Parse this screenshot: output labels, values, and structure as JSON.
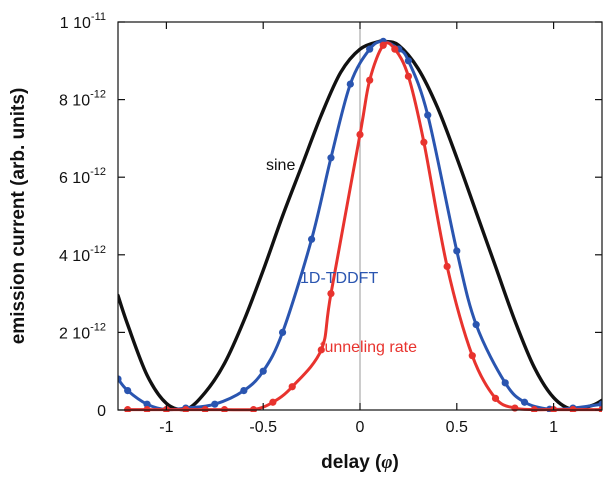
{
  "chart_data": {
    "type": "line",
    "xlabel": "delay (φ)",
    "xlabel_prefix": "delay (",
    "xlabel_symbol": "φ",
    "xlabel_suffix": ")",
    "ylabel": "emission current (arb. units)",
    "xlim": [
      -1.25,
      1.25
    ],
    "ylim": [
      0,
      1e-11
    ],
    "x_ticks": [
      {
        "value": -1,
        "label": "-1"
      },
      {
        "value": -0.5,
        "label": "-0.5"
      },
      {
        "value": 0,
        "label": "0"
      },
      {
        "value": 0.5,
        "label": "0.5"
      },
      {
        "value": 1,
        "label": "1"
      }
    ],
    "y_ticks": [
      {
        "value": 0,
        "base": "0",
        "exp": ""
      },
      {
        "value": 2e-12,
        "base": "2 10",
        "exp": "-12"
      },
      {
        "value": 4e-12,
        "base": "4 10",
        "exp": "-12"
      },
      {
        "value": 6e-12,
        "base": "6 10",
        "exp": "-12"
      },
      {
        "value": 8e-12,
        "base": "8 10",
        "exp": "-12"
      },
      {
        "value": 1e-11,
        "base": "1 10",
        "exp": "-11"
      }
    ],
    "zero_line_x": 0,
    "grid": false,
    "series": [
      {
        "name": "sine",
        "color": "#111111",
        "markers": false,
        "x": [
          -1.25,
          -1.2,
          -1.1,
          -1.0,
          -0.9,
          -0.8,
          -0.7,
          -0.6,
          -0.5,
          -0.4,
          -0.3,
          -0.2,
          -0.1,
          0.0,
          0.1,
          0.13,
          0.2,
          0.3,
          0.4,
          0.5,
          0.6,
          0.7,
          0.8,
          0.9,
          1.0,
          1.1,
          1.2,
          1.25
        ],
        "y": [
          2.95e-12,
          2.2e-12,
          9e-13,
          1.7e-13,
          1e-14,
          4.5e-13,
          1.2e-12,
          2.3e-12,
          3.6e-12,
          5e-12,
          6.3e-12,
          7.6e-12,
          8.7e-12,
          9.3e-12,
          9.5e-12,
          9.5e-12,
          9.4e-12,
          8.8e-12,
          7.8e-12,
          6.5e-12,
          5.1e-12,
          3.7e-12,
          2.3e-12,
          1.1e-12,
          3.2e-13,
          1e-14,
          1.2e-13,
          2.5e-13
        ]
      },
      {
        "name": "1D-TDDFT",
        "color": "#2a55b0",
        "markers": true,
        "x": [
          -1.25,
          -1.2,
          -1.1,
          -1.0,
          -0.9,
          -0.75,
          -0.6,
          -0.5,
          -0.4,
          -0.25,
          -0.15,
          -0.05,
          0.05,
          0.12,
          0.2,
          0.25,
          0.35,
          0.5,
          0.6,
          0.75,
          0.85,
          0.98,
          1.1,
          1.25
        ],
        "y": [
          8e-13,
          5e-13,
          1.5e-13,
          1e-14,
          5e-14,
          1.5e-13,
          5e-13,
          1e-12,
          2e-12,
          4.4e-12,
          6.5e-12,
          8.4e-12,
          9.3e-12,
          9.5e-12,
          9.3e-12,
          9e-12,
          7.6e-12,
          4.1e-12,
          2.2e-12,
          7e-13,
          2e-13,
          2e-14,
          5e-14,
          1.5e-13
        ]
      },
      {
        "name": "tunneling rate",
        "color": "#e8332e",
        "markers": true,
        "x": [
          -1.2,
          -1.1,
          -1.0,
          -0.9,
          -0.8,
          -0.7,
          -0.55,
          -0.45,
          -0.35,
          -0.2,
          -0.15,
          0.0,
          0.05,
          0.12,
          0.18,
          0.25,
          0.33,
          0.45,
          0.58,
          0.7,
          0.8,
          0.9,
          1.0,
          1.1,
          1.25
        ],
        "y": [
          1e-14,
          1e-14,
          1e-14,
          1e-14,
          1e-14,
          1e-14,
          1e-14,
          2e-13,
          6e-13,
          1.55e-12,
          3e-12,
          7.1e-12,
          8.5e-12,
          9.4e-12,
          9.3e-12,
          8.6e-12,
          6.9e-12,
          3.7e-12,
          1.4e-12,
          3e-13,
          5e-14,
          1e-14,
          1e-14,
          1e-14,
          1e-14
        ]
      }
    ]
  }
}
